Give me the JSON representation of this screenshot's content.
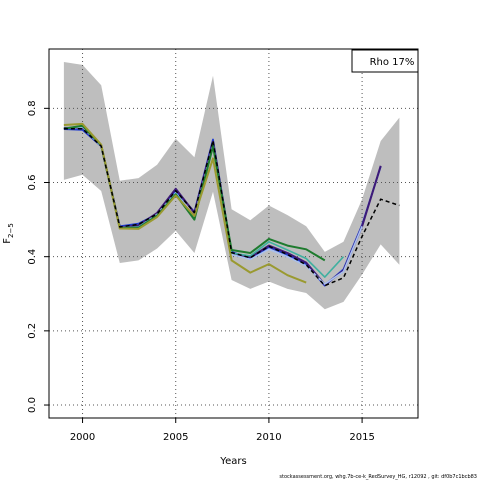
{
  "chart_data": {
    "type": "line",
    "title": "",
    "xlabel": "Years",
    "ylabel": "F",
    "ylabel_sub": "2−5",
    "xlim": [
      1998.2,
      2018.0
    ],
    "ylim": [
      -0.035,
      0.96
    ],
    "x_ticks": [
      2000,
      2005,
      2010,
      2015
    ],
    "x_tick_labels": [
      "2000",
      "2005",
      "2010",
      "2015"
    ],
    "y_ticks": [
      0.0,
      0.2,
      0.4,
      0.6,
      0.8
    ],
    "y_tick_labels": [
      "0.0",
      "0.2",
      "0.4",
      "0.6",
      "0.8"
    ],
    "grid": true,
    "legend_position": "top-right",
    "legend_text": "Rho 17%",
    "footer": "stockassessment.org, whg.7b-ce-k_RedSurvey_HG, r12092 , git: df0b7c1bcb83",
    "band": {
      "color": "#bebebe",
      "x": [
        1999,
        2000,
        2001,
        2002,
        2003,
        2004,
        2005,
        2006,
        2007,
        2008,
        2009,
        2010,
        2011,
        2012,
        2013,
        2014,
        2015,
        2016,
        2017
      ],
      "upper": [
        0.925,
        0.917,
        0.862,
        0.605,
        0.612,
        0.648,
        0.718,
        0.668,
        0.888,
        0.528,
        0.498,
        0.538,
        0.512,
        0.482,
        0.413,
        0.44,
        0.555,
        0.712,
        0.775
      ],
      "lower": [
        0.607,
        0.621,
        0.577,
        0.383,
        0.39,
        0.422,
        0.47,
        0.41,
        0.575,
        0.337,
        0.313,
        0.333,
        0.313,
        0.302,
        0.258,
        0.278,
        0.352,
        0.433,
        0.378
      ]
    },
    "series": [
      {
        "color": "#1f3bd0",
        "width": 1.8,
        "dash": "",
        "x": [
          1999,
          2000,
          2001,
          2002,
          2003,
          2004,
          2005,
          2006,
          2007,
          2008,
          2009,
          2010,
          2011,
          2012,
          2013,
          2014,
          2015,
          2016
        ],
        "values": [
          0.744,
          0.742,
          0.698,
          0.482,
          0.489,
          0.515,
          0.577,
          0.521,
          0.716,
          0.413,
          0.395,
          0.426,
          0.405,
          0.38,
          0.322,
          0.366,
          0.486,
          0.643
        ]
      },
      {
        "color": "#3d1a78",
        "width": 2.0,
        "dash": "",
        "x": [
          1999,
          2000,
          2001,
          2002,
          2003,
          2004,
          2005,
          2006,
          2007,
          2008,
          2009,
          2010,
          2011,
          2012,
          2013,
          2014,
          2015,
          2016
        ],
        "values": [
          0.747,
          0.748,
          0.7,
          0.479,
          0.484,
          0.518,
          0.583,
          0.518,
          0.71,
          0.41,
          0.398,
          0.43,
          0.41,
          0.384,
          0.325,
          0.362,
          0.482,
          0.645
        ]
      },
      {
        "color": "#a8c0f0",
        "width": 1.6,
        "dash": "",
        "x": [
          1999,
          2000,
          2001,
          2002,
          2003,
          2004,
          2005,
          2006,
          2007,
          2008,
          2009,
          2010,
          2011,
          2012,
          2013,
          2014,
          2015
        ],
        "values": [
          0.745,
          0.75,
          0.698,
          0.478,
          0.48,
          0.514,
          0.572,
          0.508,
          0.702,
          0.406,
          0.393,
          0.42,
          0.4,
          0.375,
          0.326,
          0.36,
          0.482
        ]
      },
      {
        "color": "#40b0a0",
        "width": 1.6,
        "dash": "",
        "x": [
          1999,
          2000,
          2001,
          2002,
          2003,
          2004,
          2005,
          2006,
          2007,
          2008,
          2009,
          2010,
          2011,
          2012,
          2013,
          2014
        ],
        "values": [
          0.745,
          0.752,
          0.7,
          0.478,
          0.48,
          0.512,
          0.57,
          0.505,
          0.7,
          0.41,
          0.402,
          0.44,
          0.418,
          0.395,
          0.345,
          0.4
        ]
      },
      {
        "color": "#1e7b2e",
        "width": 2.0,
        "dash": "",
        "x": [
          1999,
          2000,
          2001,
          2002,
          2003,
          2004,
          2005,
          2006,
          2007,
          2008,
          2009,
          2010,
          2011,
          2012,
          2013
        ],
        "values": [
          0.745,
          0.753,
          0.7,
          0.477,
          0.478,
          0.51,
          0.568,
          0.5,
          0.698,
          0.418,
          0.41,
          0.448,
          0.43,
          0.42,
          0.39
        ]
      },
      {
        "color": "#9a9a30",
        "width": 2.0,
        "dash": "",
        "x": [
          1999,
          2000,
          2001,
          2002,
          2003,
          2004,
          2005,
          2006,
          2007,
          2008,
          2009,
          2010,
          2011,
          2012
        ],
        "values": [
          0.755,
          0.758,
          0.702,
          0.476,
          0.475,
          0.507,
          0.565,
          0.51,
          0.665,
          0.39,
          0.357,
          0.38,
          0.35,
          0.33
        ]
      },
      {
        "color": "#000000",
        "width": 1.5,
        "dash": "4,3",
        "x": [
          1999,
          2000,
          2001,
          2002,
          2003,
          2004,
          2005,
          2006,
          2007,
          2008,
          2009,
          2010,
          2011,
          2012,
          2013,
          2014,
          2015,
          2016,
          2017
        ],
        "values": [
          0.745,
          0.745,
          0.698,
          0.48,
          0.487,
          0.515,
          0.578,
          0.519,
          0.713,
          0.411,
          0.397,
          0.428,
          0.406,
          0.378,
          0.322,
          0.343,
          0.455,
          0.555,
          0.538
        ]
      }
    ]
  }
}
